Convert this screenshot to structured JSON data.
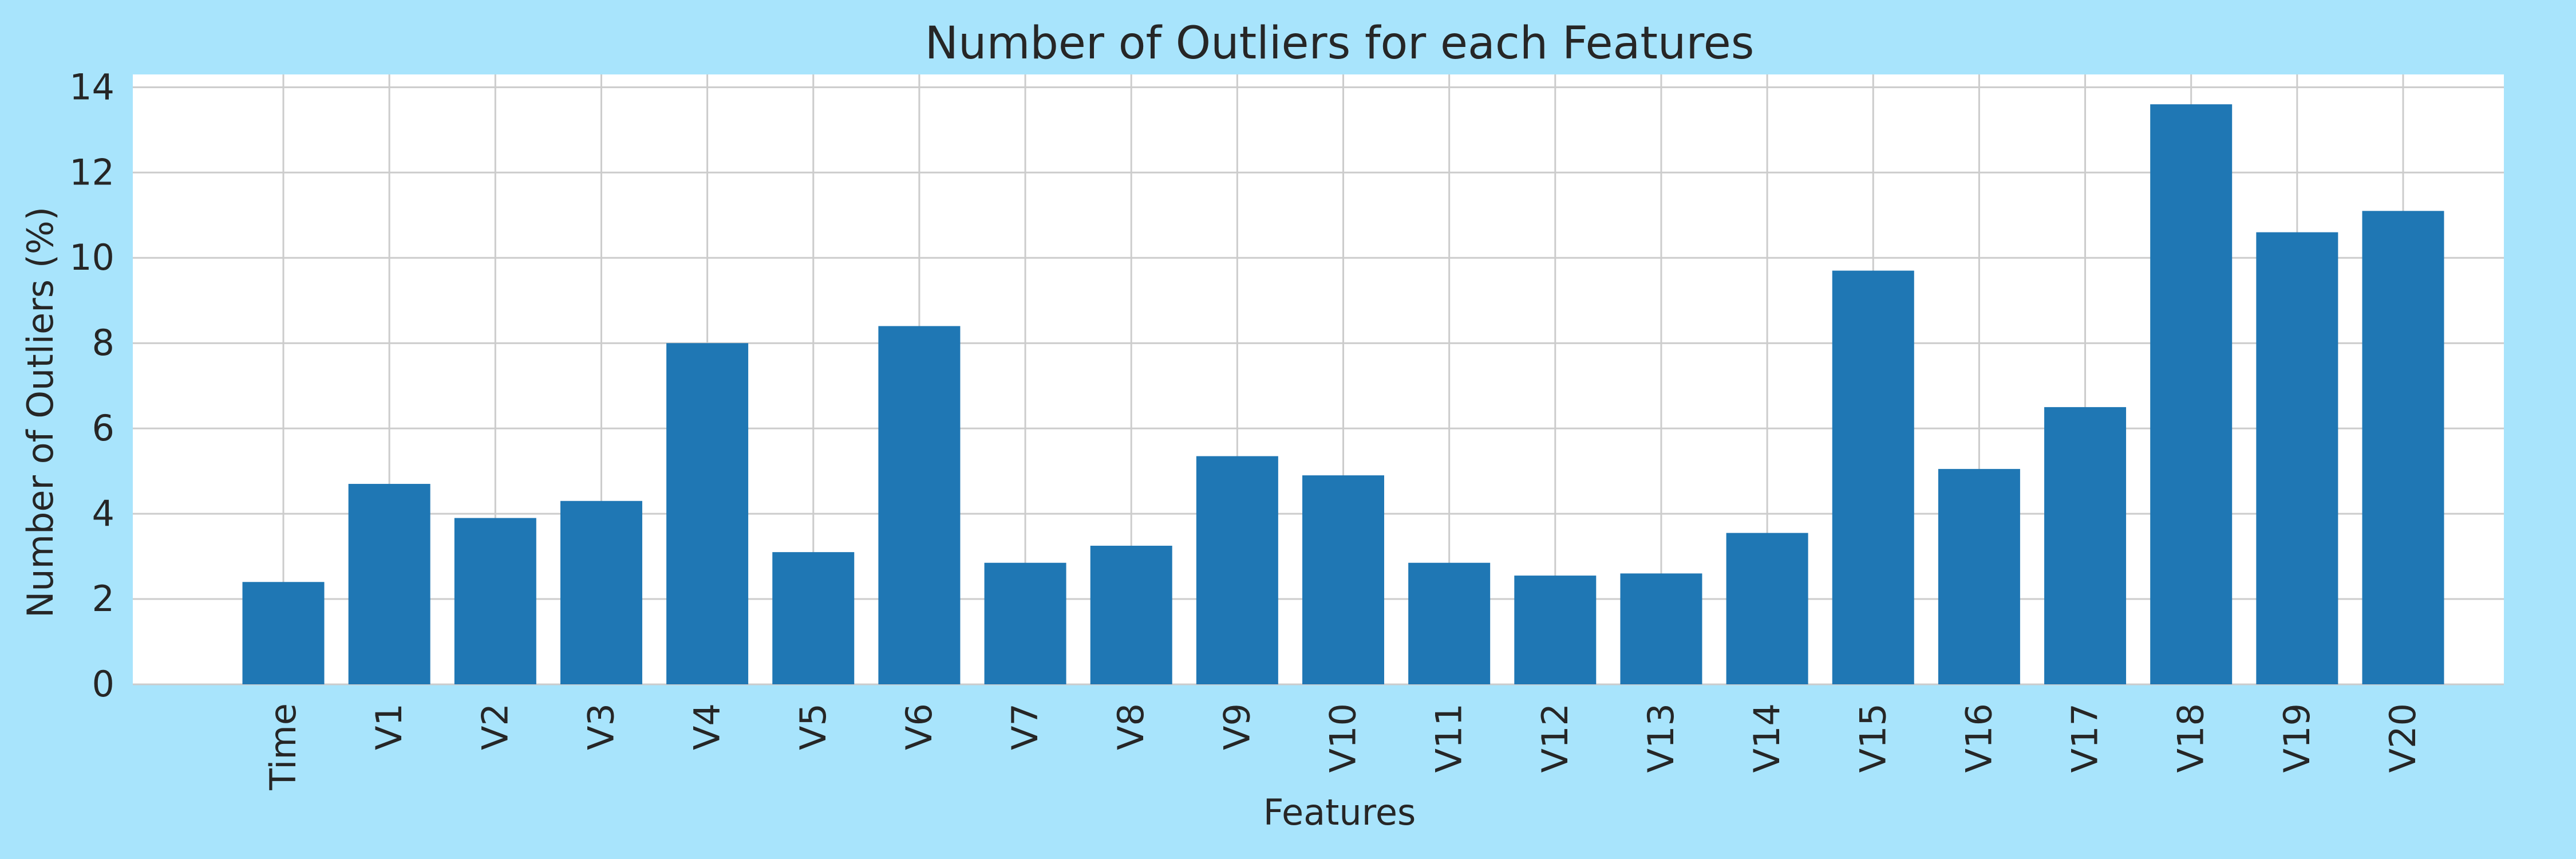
{
  "chart_data": {
    "type": "bar",
    "title": "Number of Outliers for each Features",
    "xlabel": "Features",
    "ylabel": "Number of Outliers (%)",
    "categories": [
      "Time",
      "V1",
      "V2",
      "V3",
      "V4",
      "V5",
      "V6",
      "V7",
      "V8",
      "V9",
      "V10",
      "V11",
      "V12",
      "V13",
      "V14",
      "V15",
      "V16",
      "V17",
      "V18",
      "V19",
      "V20"
    ],
    "values": [
      2.4,
      4.7,
      3.9,
      4.3,
      8.0,
      3.1,
      8.4,
      2.85,
      3.25,
      5.35,
      4.9,
      2.85,
      2.55,
      2.6,
      3.55,
      9.7,
      5.05,
      6.5,
      13.6,
      10.6,
      11.1
    ],
    "yticks": [
      0,
      2,
      4,
      6,
      8,
      10,
      12,
      14
    ],
    "ylim": [
      0,
      14.3
    ],
    "grid": true,
    "legend": "none",
    "bar_color": "#1f77b4",
    "background_color": "#a8e4fc",
    "plot_background_color": "#ffffff",
    "grid_color": "#cccccc"
  }
}
